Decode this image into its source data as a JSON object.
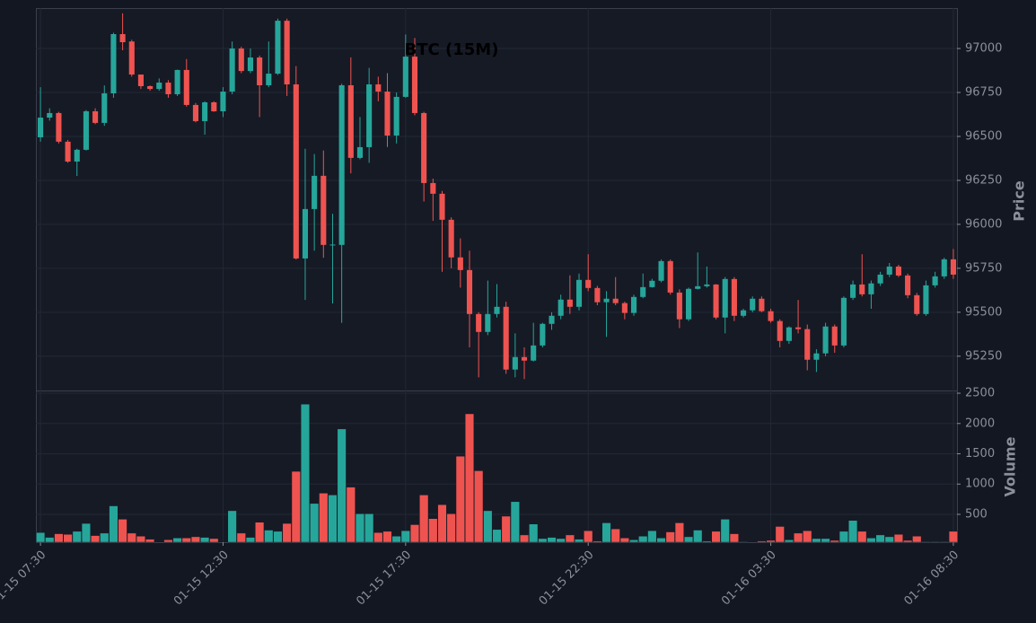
{
  "chart_data": {
    "type": "candlestick",
    "title": "BTC (15M)",
    "y_label": "Price",
    "y2_label": "Volume",
    "up_color": "#26a69a",
    "down_color": "#ef5350",
    "grid": true,
    "xlim": [
      -0.5,
      100.4
    ],
    "xticks": [
      {
        "value": 0,
        "label": "01-15 07:30"
      },
      {
        "value": 20,
        "label": "01-15 12:30"
      },
      {
        "value": 40,
        "label": "01-15 17:30"
      },
      {
        "value": 60,
        "label": "01-15 22:30"
      },
      {
        "value": 80,
        "label": "01-16 03:30"
      },
      {
        "value": 100,
        "label": "01-16 08:30"
      }
    ],
    "ylim": [
      95055,
      97230
    ],
    "yticks": [
      95250,
      95500,
      95750,
      96000,
      96250,
      96500,
      96750,
      97000
    ],
    "y2lim": [
      40,
      2545
    ],
    "y2ticks": [
      500,
      1000,
      1500,
      2000,
      2500
    ],
    "open": [
      96495,
      96607,
      96633,
      96470,
      96357,
      96424,
      96643,
      96577,
      96745,
      97082,
      97040,
      96852,
      96786,
      96770,
      96806,
      96740,
      96878,
      96679,
      96587,
      96694,
      96643,
      96755,
      97000,
      96872,
      96949,
      96791,
      96857,
      97158,
      96796,
      95806,
      96087,
      96276,
      95883,
      95883,
      96791,
      96378,
      96439,
      96796,
      96755,
      96505,
      96725,
      96954,
      96633,
      96235,
      96174,
      96026,
      95812,
      95740,
      95490,
      95388,
      95490,
      95531,
      95174,
      95245,
      95225,
      95311,
      95434,
      95480,
      95572,
      95531,
      95684,
      95638,
      95557,
      95577,
      95552,
      95496,
      95587,
      95643,
      95679,
      95791,
      95612,
      95460,
      95633,
      95648,
      95658,
      95470,
      95689,
      95480,
      95511,
      95577,
      95506,
      95450,
      95337,
      95414,
      95404,
      95230,
      95266,
      95419,
      95311,
      95582,
      95658,
      95602,
      95664,
      95714,
      95760,
      95709,
      95597,
      95490,
      95653,
      95704,
      95801
    ],
    "high": [
      96780,
      96660,
      96640,
      96480,
      96430,
      96650,
      96660,
      96790,
      97090,
      97200,
      97050,
      96850,
      96790,
      96830,
      96820,
      96880,
      96940,
      96690,
      96700,
      96700,
      96780,
      97040,
      97010,
      97000,
      96960,
      97040,
      97170,
      97170,
      96900,
      96430,
      96400,
      96420,
      96060,
      96800,
      96950,
      96610,
      96890,
      96840,
      96860,
      96750,
      97080,
      97060,
      96640,
      96260,
      96190,
      96040,
      95920,
      95850,
      95500,
      95680,
      95660,
      95560,
      95380,
      95300,
      95440,
      95440,
      95500,
      95600,
      95710,
      95720,
      95830,
      95650,
      95620,
      95700,
      95560,
      95600,
      95720,
      95690,
      95800,
      95800,
      95630,
      95640,
      95840,
      95760,
      95660,
      95700,
      95700,
      95520,
      95590,
      95590,
      95520,
      95460,
      95420,
      95570,
      95430,
      95290,
      95440,
      95430,
      95590,
      95680,
      95830,
      95680,
      95730,
      95780,
      95770,
      95720,
      95610,
      95680,
      95730,
      95810,
      95860
    ],
    "low": [
      96470,
      96590,
      96460,
      96350,
      96275,
      96420,
      96570,
      96560,
      96720,
      96990,
      96840,
      96770,
      96760,
      96760,
      96720,
      96730,
      96670,
      96580,
      96510,
      96640,
      96610,
      96740,
      96860,
      96860,
      96610,
      96780,
      96850,
      96730,
      95800,
      95570,
      95850,
      95810,
      95550,
      95440,
      96290,
      96370,
      96350,
      96700,
      96440,
      96460,
      96720,
      96620,
      96130,
      96020,
      95730,
      95750,
      95640,
      95300,
      95130,
      95370,
      95470,
      95150,
      95130,
      95120,
      95220,
      95300,
      95400,
      95460,
      95490,
      95510,
      95620,
      95540,
      95360,
      95540,
      95460,
      95480,
      95580,
      95640,
      95670,
      95600,
      95410,
      95450,
      95630,
      95640,
      95460,
      95380,
      95450,
      95470,
      95500,
      95500,
      95440,
      95300,
      95320,
      95380,
      95170,
      95160,
      95250,
      95270,
      95300,
      95570,
      95590,
      95520,
      95650,
      95700,
      95700,
      95580,
      95480,
      95480,
      95640,
      95690,
      95690
    ],
    "close": [
      96607,
      96633,
      96470,
      96357,
      96424,
      96643,
      96577,
      96745,
      97082,
      97036,
      96852,
      96786,
      96770,
      96806,
      96740,
      96878,
      96679,
      96587,
      96694,
      96643,
      96755,
      97000,
      96872,
      96949,
      96791,
      96857,
      97158,
      96796,
      95806,
      96087,
      96276,
      95883,
      95885,
      96791,
      96378,
      96439,
      96796,
      96755,
      96505,
      96725,
      96954,
      96633,
      96235,
      96174,
      96026,
      95812,
      95740,
      95490,
      95388,
      95490,
      95531,
      95174,
      95245,
      95225,
      95311,
      95434,
      95480,
      95572,
      95531,
      95684,
      95638,
      95557,
      95577,
      95552,
      95496,
      95587,
      95643,
      95679,
      95791,
      95612,
      95460,
      95633,
      95648,
      95658,
      95470,
      95689,
      95480,
      95511,
      95577,
      95506,
      95450,
      95337,
      95414,
      95404,
      95230,
      95266,
      95419,
      95311,
      95582,
      95658,
      95602,
      95664,
      95714,
      95760,
      95709,
      95597,
      95490,
      95653,
      95704,
      95801,
      95714
    ],
    "volume": [
      200,
      120,
      180,
      170,
      220,
      350,
      150,
      190,
      640,
      420,
      190,
      140,
      90,
      40,
      80,
      110,
      110,
      130,
      120,
      100,
      40,
      560,
      190,
      120,
      370,
      240,
      220,
      350,
      1210,
      2320,
      680,
      850,
      820,
      1910,
      950,
      510,
      510,
      200,
      220,
      140,
      230,
      330,
      820,
      430,
      660,
      510,
      1460,
      2160,
      1220,
      560,
      250,
      470,
      710,
      160,
      340,
      100,
      120,
      100,
      160,
      90,
      230,
      60,
      360,
      260,
      110,
      80,
      140,
      230,
      110,
      210,
      360,
      130,
      240,
      60,
      220,
      420,
      180,
      50,
      40,
      60,
      70,
      300,
      80,
      190,
      230,
      100,
      100,
      70,
      220,
      400,
      220,
      110,
      160,
      130,
      170,
      70,
      140,
      50,
      50,
      50,
      220
    ]
  }
}
